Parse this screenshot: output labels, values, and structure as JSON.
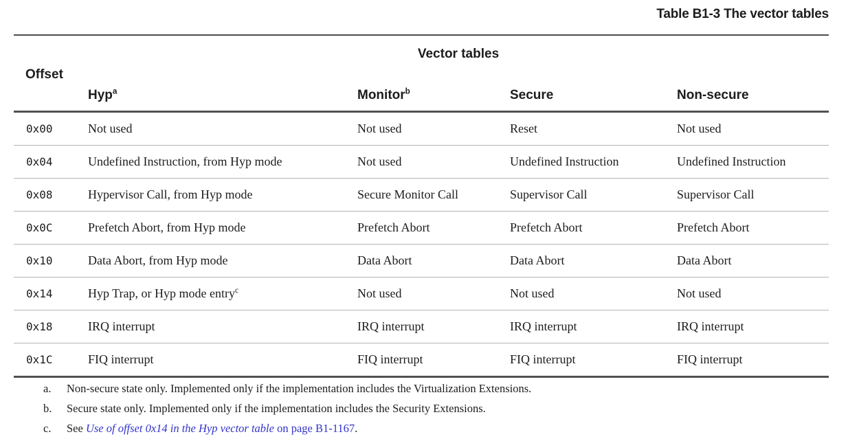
{
  "title": "Table B1-3 The vector tables",
  "colors": {
    "link": "#3333cc",
    "text": "#1c1c1c",
    "rule_dark": "#515151",
    "rule_light": "#b3b3b3"
  },
  "table": {
    "group_header": "Vector tables",
    "offset_header": "Offset",
    "columns": [
      {
        "label": "Hyp",
        "sup": "a"
      },
      {
        "label": "Monitor",
        "sup": "b"
      },
      {
        "label": "Secure",
        "sup": ""
      },
      {
        "label": "Non-secure",
        "sup": ""
      }
    ],
    "rows": [
      {
        "offset": "0x00",
        "hyp": {
          "text": "Not used",
          "sup": ""
        },
        "monitor": "Not used",
        "secure": "Reset",
        "non_secure": "Not used"
      },
      {
        "offset": "0x04",
        "hyp": {
          "text": "Undefined Instruction, from Hyp mode",
          "sup": ""
        },
        "monitor": "Not used",
        "secure": "Undefined Instruction",
        "non_secure": "Undefined Instruction"
      },
      {
        "offset": "0x08",
        "hyp": {
          "text": "Hypervisor Call, from Hyp mode",
          "sup": ""
        },
        "monitor": "Secure Monitor Call",
        "secure": "Supervisor Call",
        "non_secure": "Supervisor Call"
      },
      {
        "offset": "0x0C",
        "hyp": {
          "text": "Prefetch Abort, from Hyp mode",
          "sup": ""
        },
        "monitor": "Prefetch Abort",
        "secure": "Prefetch Abort",
        "non_secure": "Prefetch Abort"
      },
      {
        "offset": "0x10",
        "hyp": {
          "text": "Data Abort, from Hyp mode",
          "sup": ""
        },
        "monitor": "Data Abort",
        "secure": "Data Abort",
        "non_secure": "Data Abort"
      },
      {
        "offset": "0x14",
        "hyp": {
          "text": "Hyp Trap, or Hyp mode entry",
          "sup": "c"
        },
        "monitor": "Not used",
        "secure": "Not used",
        "non_secure": "Not used"
      },
      {
        "offset": "0x18",
        "hyp": {
          "text": "IRQ interrupt",
          "sup": ""
        },
        "monitor": "IRQ interrupt",
        "secure": "IRQ interrupt",
        "non_secure": "IRQ interrupt"
      },
      {
        "offset": "0x1C",
        "hyp": {
          "text": "FIQ interrupt",
          "sup": ""
        },
        "monitor": "FIQ interrupt",
        "secure": "FIQ interrupt",
        "non_secure": "FIQ interrupt"
      }
    ]
  },
  "footnotes": {
    "a": {
      "label": "a.",
      "text": "Non-secure state only. Implemented only if the implementation includes the Virtualization Extensions."
    },
    "b": {
      "label": "b.",
      "text": "Secure state only. Implemented only if the implementation includes the Security Extensions."
    },
    "c": {
      "label": "c.",
      "prefix": "See ",
      "link_text": "Use of offset 0x14 in the Hyp vector table",
      "link_page": " on page B1-1167",
      "period": "."
    }
  }
}
